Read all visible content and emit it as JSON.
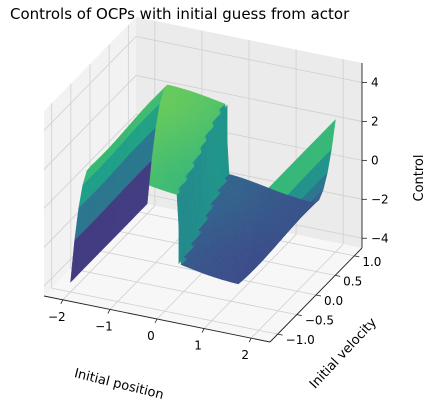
{
  "chart_data": {
    "type": "surface",
    "title": "Controls of OCPs with initial guess from actor",
    "xlabel": "Initial position",
    "ylabel": "Initial velocity",
    "zlabel": "Control",
    "xlim": [
      -2.4,
      2.4
    ],
    "ylim": [
      -1.2,
      1.2
    ],
    "zlim": [
      -4.5,
      5.0
    ],
    "xticks": [
      -2,
      -1,
      0,
      1,
      2
    ],
    "xtick_labels": [
      "−2",
      "−1",
      "0",
      "1",
      "2"
    ],
    "yticks": [
      -1.0,
      -0.5,
      0.0,
      0.5,
      1.0
    ],
    "ytick_labels": [
      "−1.0",
      "−0.5",
      "0.0",
      "0.5",
      "1.0"
    ],
    "zticks": [
      -4,
      -2,
      0,
      2,
      4
    ],
    "ztick_labels": [
      "−4",
      "−2",
      "0",
      "2",
      "4"
    ],
    "colormap": "viridis",
    "grid": true,
    "surface": {
      "x_range": [
        -2.0,
        2.0
      ],
      "y_range": [
        -1.0,
        1.0
      ],
      "switch_position": [
        0.0,
        -0.3
      ],
      "control_range": [
        -4.0,
        4.0
      ],
      "edge_values": [
        -4.0,
        2.3
      ]
    }
  }
}
